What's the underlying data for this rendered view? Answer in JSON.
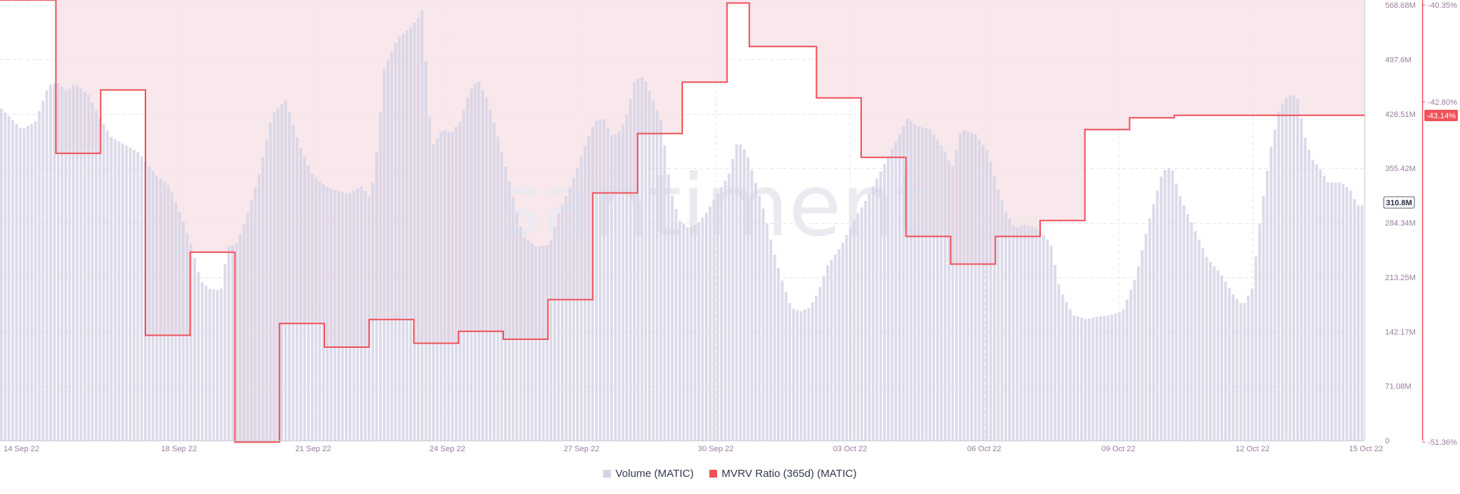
{
  "watermark": "santiment",
  "chart_data": {
    "type": "bar+line",
    "x_ticks": [
      "14 Sep 22",
      "18 Sep 22",
      "21 Sep 22",
      "24 Sep 22",
      "27 Sep 22",
      "30 Sep 22",
      "03 Oct 22",
      "06 Oct 22",
      "09 Oct 22",
      "12 Oct 22",
      "15 Oct 22"
    ],
    "volume_axis": {
      "ticks": [
        "568.68M",
        "497.6M",
        "426.51M",
        "355.42M",
        "284.34M",
        "213.25M",
        "142.17M",
        "71.08M",
        "0"
      ],
      "ylim": [
        0,
        574
      ],
      "last_value_label": "310.8M"
    },
    "mvrv_axis": {
      "ticks": [
        "-40.35%",
        "-42.80%",
        "-51.36%"
      ],
      "ylim": [
        -51.36,
        -40.35
      ],
      "last_value_label": "-43.14%"
    },
    "series": [
      {
        "name": "Volume (MATIC)",
        "color": "#d6d3e6",
        "unit": "M",
        "keypoints": [
          [
            13.5,
            440
          ],
          [
            14.0,
            410
          ],
          [
            14.3,
            420
          ],
          [
            14.6,
            468
          ],
          [
            14.8,
            472
          ],
          [
            15.0,
            460
          ],
          [
            15.2,
            470
          ],
          [
            15.5,
            455
          ],
          [
            15.7,
            430
          ],
          [
            16.0,
            400
          ],
          [
            16.3,
            390
          ],
          [
            16.6,
            380
          ],
          [
            17.0,
            350
          ],
          [
            17.3,
            335
          ],
          [
            17.6,
            290
          ],
          [
            17.8,
            255
          ],
          [
            18.0,
            210
          ],
          [
            18.2,
            200
          ],
          [
            18.45,
            198
          ],
          [
            18.6,
            255
          ],
          [
            18.8,
            260
          ],
          [
            19.0,
            290
          ],
          [
            19.3,
            350
          ],
          [
            19.6,
            430
          ],
          [
            19.9,
            448
          ],
          [
            20.2,
            390
          ],
          [
            20.5,
            350
          ],
          [
            20.8,
            335
          ],
          [
            21.0,
            330
          ],
          [
            21.3,
            325
          ],
          [
            21.6,
            335
          ],
          [
            21.8,
            318
          ],
          [
            21.95,
            390
          ],
          [
            22.1,
            490
          ],
          [
            22.4,
            530
          ],
          [
            22.7,
            545
          ],
          [
            22.9,
            560
          ],
          [
            23.0,
            575
          ],
          [
            23.05,
            455
          ],
          [
            23.2,
            390
          ],
          [
            23.4,
            410
          ],
          [
            23.6,
            405
          ],
          [
            23.8,
            420
          ],
          [
            24.0,
            460
          ],
          [
            24.2,
            475
          ],
          [
            24.4,
            450
          ],
          [
            24.6,
            410
          ],
          [
            24.9,
            340
          ],
          [
            25.2,
            270
          ],
          [
            25.5,
            255
          ],
          [
            25.8,
            258
          ],
          [
            26.0,
            300
          ],
          [
            26.3,
            340
          ],
          [
            26.6,
            390
          ],
          [
            26.8,
            420
          ],
          [
            27.0,
            425
          ],
          [
            27.2,
            400
          ],
          [
            27.4,
            410
          ],
          [
            27.55,
            435
          ],
          [
            27.7,
            475
          ],
          [
            27.9,
            480
          ],
          [
            28.1,
            450
          ],
          [
            28.3,
            420
          ],
          [
            28.5,
            330
          ],
          [
            28.7,
            290
          ],
          [
            28.9,
            280
          ],
          [
            29.1,
            285
          ],
          [
            29.3,
            300
          ],
          [
            29.6,
            330
          ],
          [
            29.8,
            350
          ],
          [
            30.0,
            395
          ],
          [
            30.2,
            380
          ],
          [
            30.4,
            340
          ],
          [
            30.6,
            300
          ],
          [
            30.8,
            250
          ],
          [
            31.0,
            210
          ],
          [
            31.2,
            175
          ],
          [
            31.4,
            170
          ],
          [
            31.6,
            175
          ],
          [
            31.8,
            195
          ],
          [
            32.0,
            230
          ],
          [
            32.3,
            255
          ],
          [
            32.6,
            290
          ],
          [
            32.9,
            320
          ],
          [
            33.2,
            355
          ],
          [
            33.5,
            390
          ],
          [
            33.8,
            425
          ],
          [
            34.0,
            415
          ],
          [
            34.3,
            410
          ],
          [
            34.6,
            385
          ],
          [
            34.8,
            360
          ],
          [
            35.0,
            410
          ],
          [
            35.3,
            405
          ],
          [
            35.6,
            380
          ],
          [
            35.8,
            335
          ],
          [
            36.0,
            300
          ],
          [
            36.2,
            280
          ],
          [
            36.4,
            285
          ],
          [
            36.7,
            280
          ],
          [
            37.0,
            260
          ],
          [
            37.2,
            200
          ],
          [
            37.5,
            165
          ],
          [
            37.8,
            160
          ],
          [
            38.0,
            163
          ],
          [
            38.3,
            165
          ],
          [
            38.6,
            170
          ],
          [
            38.9,
            215
          ],
          [
            39.2,
            290
          ],
          [
            39.5,
            355
          ],
          [
            39.7,
            360
          ],
          [
            39.9,
            320
          ],
          [
            40.2,
            280
          ],
          [
            40.5,
            240
          ],
          [
            40.8,
            220
          ],
          [
            41.1,
            190
          ],
          [
            41.3,
            178
          ],
          [
            41.5,
            200
          ],
          [
            41.7,
            300
          ],
          [
            41.9,
            380
          ],
          [
            42.1,
            435
          ],
          [
            42.3,
            455
          ],
          [
            42.5,
            455
          ],
          [
            42.7,
            395
          ],
          [
            42.85,
            370
          ],
          [
            43.0,
            360
          ],
          [
            43.2,
            340
          ],
          [
            43.5,
            340
          ],
          [
            43.7,
            330
          ],
          [
            43.85,
            310
          ]
        ]
      },
      {
        "name": "MVRV Ratio (365d) (MATIC)",
        "color": "#f0515a",
        "unit": "%",
        "steps": [
          [
            13.5,
            -40.0
          ],
          [
            14.75,
            -40.0
          ],
          [
            14.75,
            -44.1
          ],
          [
            15.75,
            -44.1
          ],
          [
            15.75,
            -42.5
          ],
          [
            16.75,
            -42.5
          ],
          [
            16.75,
            -48.7
          ],
          [
            17.75,
            -48.7
          ],
          [
            17.75,
            -46.6
          ],
          [
            18.75,
            -46.6
          ],
          [
            18.75,
            -51.4
          ],
          [
            19.75,
            -51.4
          ],
          [
            19.75,
            -48.4
          ],
          [
            20.75,
            -48.4
          ],
          [
            20.75,
            -49.0
          ],
          [
            21.75,
            -49.0
          ],
          [
            21.75,
            -48.3
          ],
          [
            22.75,
            -48.3
          ],
          [
            22.75,
            -48.9
          ],
          [
            23.75,
            -48.9
          ],
          [
            23.75,
            -48.6
          ],
          [
            24.75,
            -48.6
          ],
          [
            24.75,
            -48.8
          ],
          [
            25.75,
            -48.8
          ],
          [
            25.75,
            -47.8
          ],
          [
            26.75,
            -47.8
          ],
          [
            26.75,
            -45.1
          ],
          [
            27.75,
            -45.1
          ],
          [
            27.75,
            -43.6
          ],
          [
            28.75,
            -43.6
          ],
          [
            28.75,
            -42.3
          ],
          [
            29.75,
            -42.3
          ],
          [
            29.75,
            -40.3
          ],
          [
            30.25,
            -40.3
          ],
          [
            30.25,
            -41.4
          ],
          [
            31.75,
            -41.4
          ],
          [
            31.75,
            -42.7
          ],
          [
            32.75,
            -42.7
          ],
          [
            32.75,
            -44.2
          ],
          [
            33.75,
            -44.2
          ],
          [
            33.75,
            -46.2
          ],
          [
            34.75,
            -46.2
          ],
          [
            34.75,
            -46.9
          ],
          [
            35.75,
            -46.9
          ],
          [
            35.75,
            -46.2
          ],
          [
            36.75,
            -46.2
          ],
          [
            36.75,
            -45.8
          ],
          [
            37.75,
            -45.8
          ],
          [
            37.75,
            -43.5
          ],
          [
            38.75,
            -43.5
          ],
          [
            38.75,
            -43.2
          ],
          [
            39.75,
            -43.2
          ],
          [
            39.75,
            -43.14
          ]
        ]
      }
    ],
    "legend": [
      "Volume (MATIC)",
      "MVRV Ratio (365d) (MATIC)"
    ],
    "grid": true,
    "legend_position": "bottom-center"
  },
  "legend": {
    "volume_label": "Volume (MATIC)",
    "mvrv_label": "MVRV Ratio (365d) (MATIC)"
  }
}
